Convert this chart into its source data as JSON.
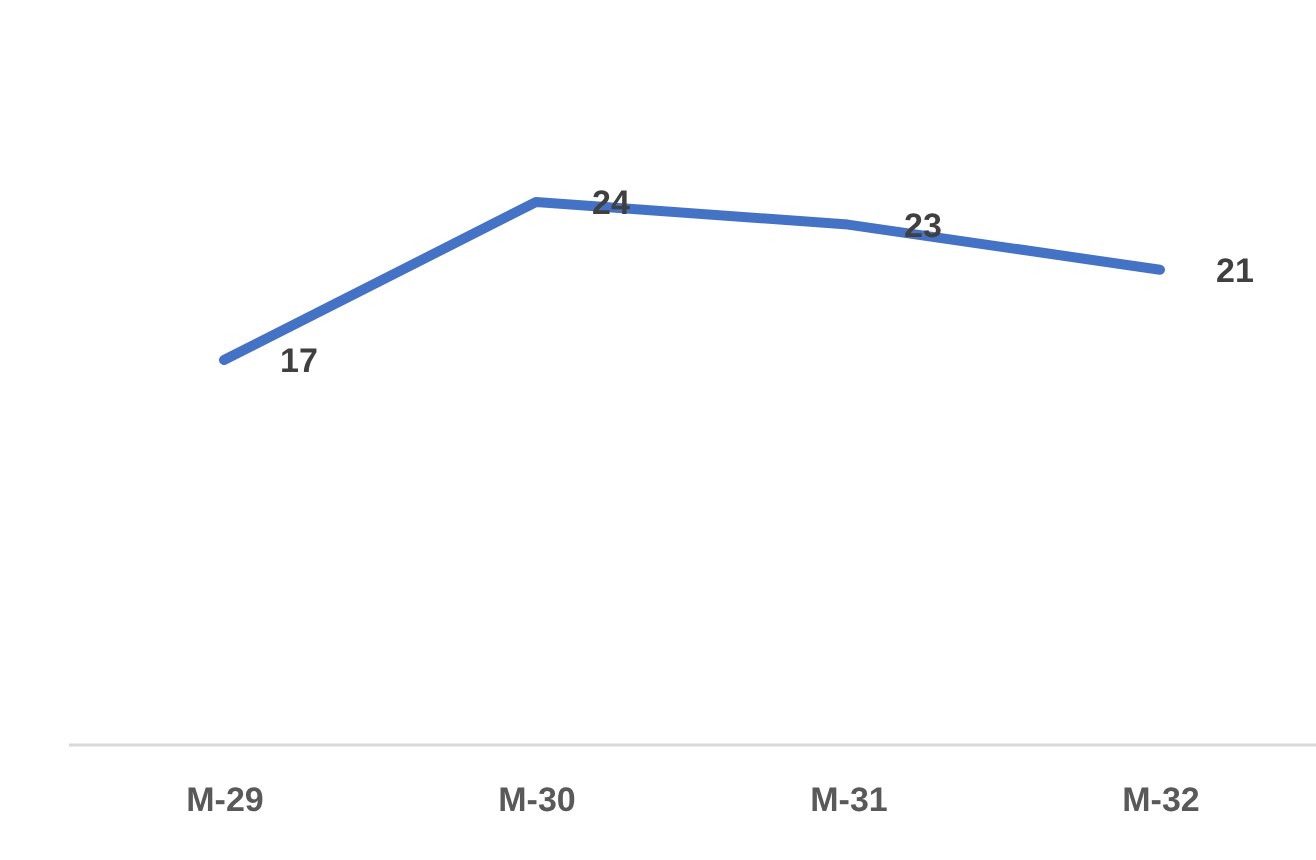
{
  "chart_data": {
    "type": "line",
    "categories": [
      "M-29",
      "M-30",
      "M-31",
      "M-32"
    ],
    "values": [
      17,
      24,
      23,
      21
    ],
    "color": "#4472c4",
    "data_labels": true,
    "tick_labels": "x"
  }
}
